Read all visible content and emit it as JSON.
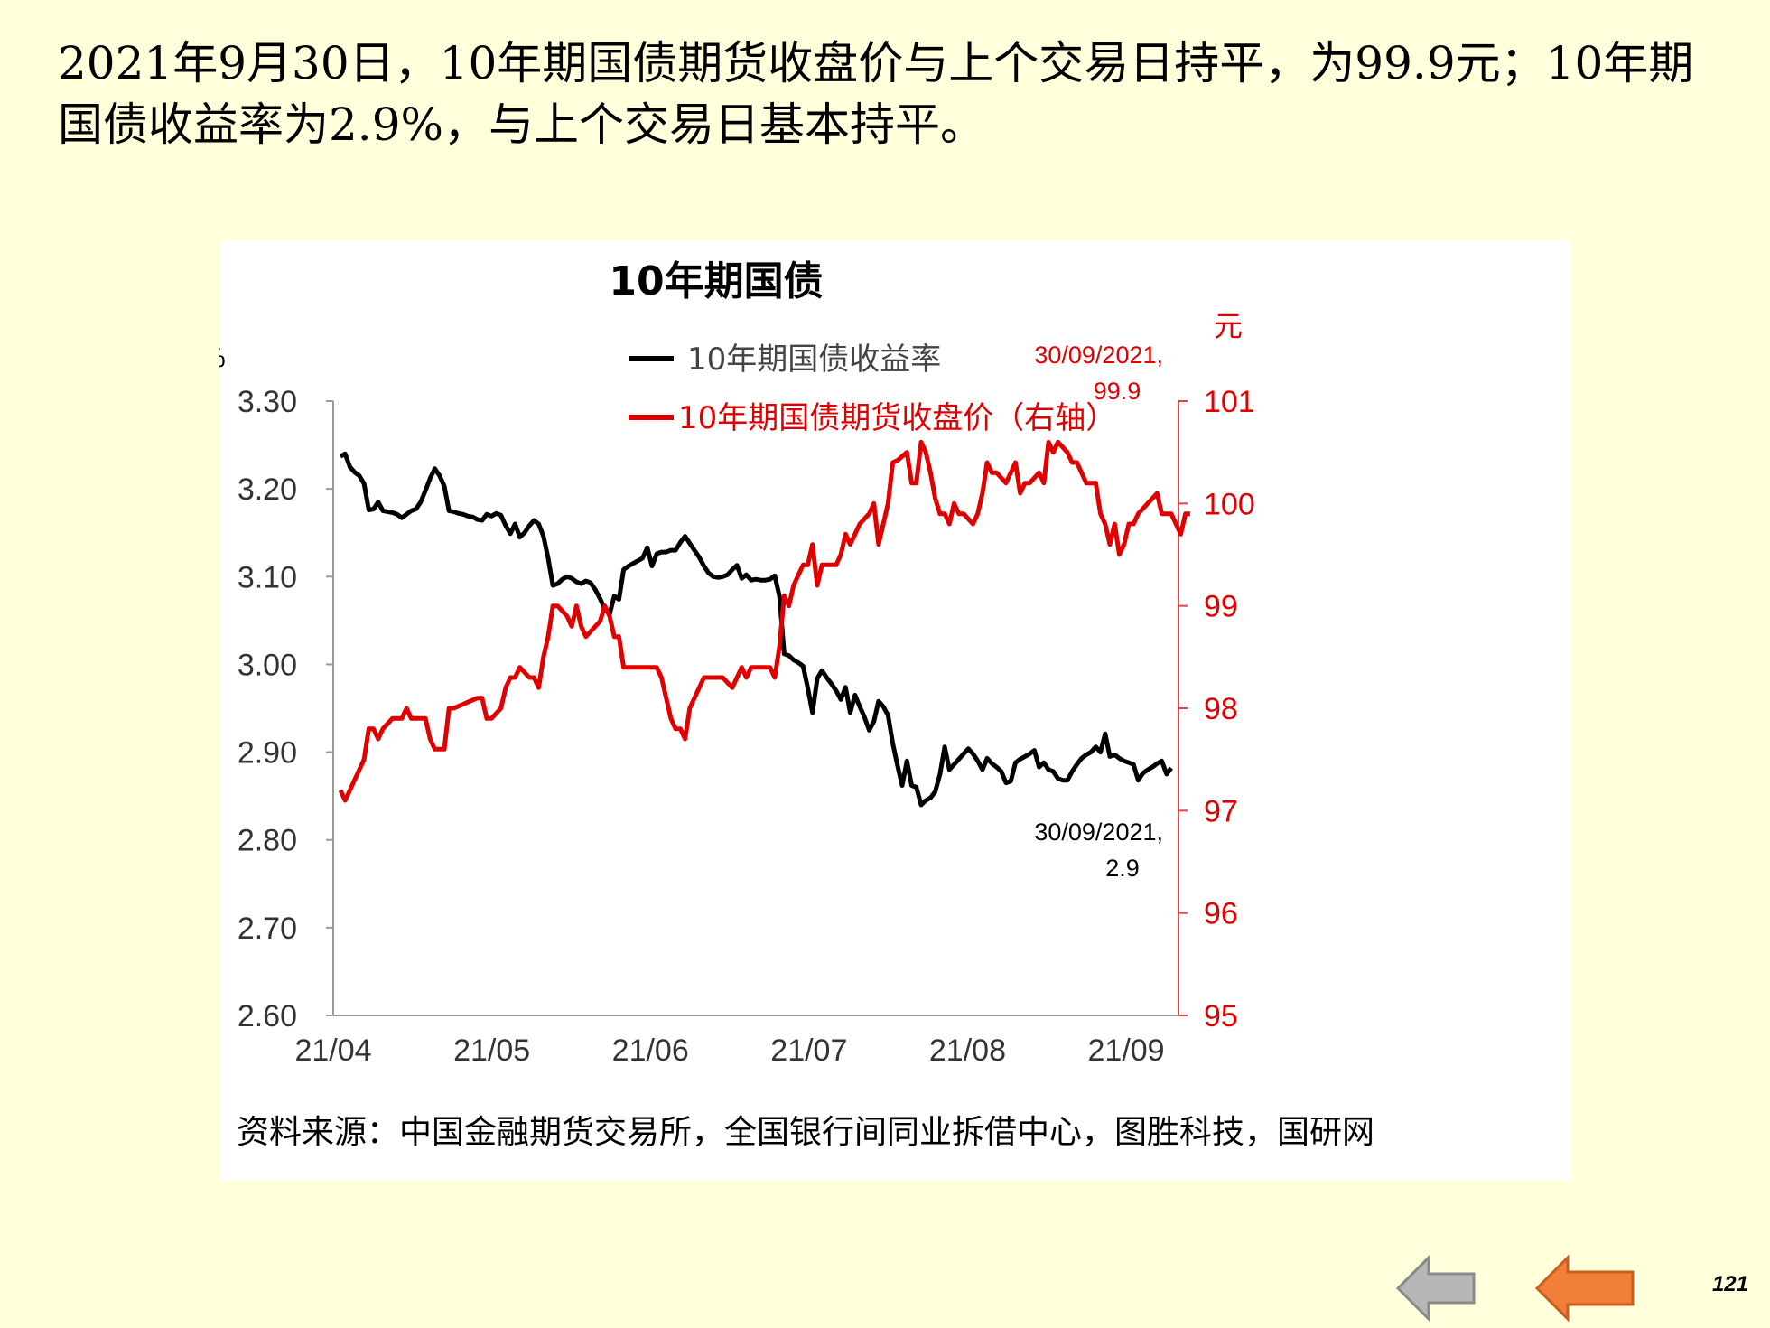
{
  "headline": "2021年9月30日，10年期国债期货收盘价与上个交易日持平，为99.9元；10年期国债收益率为2.9%，与上个交易日基本持平。",
  "source": "资料来源：中国金融期货交易所，全国银行间同业拆借中心，图胜科技，国研网",
  "page_number": "121",
  "nav": {
    "back_icon": "gray-left-arrow-icon",
    "prev_icon": "orange-left-arrow-icon"
  },
  "colors": {
    "background": "#ffffdc",
    "yield": "#000000",
    "futures": "#e00000",
    "prev_button": "#f07f3a",
    "back_button": "#b7b7b7"
  },
  "chart_data": {
    "type": "line",
    "title": "10年期国债",
    "xlabel": "",
    "y_left_unit": "%",
    "y_right_unit": "元",
    "x_ticks": [
      "21/04",
      "21/05",
      "21/06",
      "21/07",
      "21/08",
      "21/09"
    ],
    "ylim_left": [
      2.6,
      3.3
    ],
    "yticks_left": [
      "3.30",
      "3.20",
      "3.10",
      "3.00",
      "2.90",
      "2.80",
      "2.70",
      "2.60"
    ],
    "ylim_right": [
      95,
      101
    ],
    "yticks_right": [
      "101",
      "100",
      "99",
      "98",
      "97",
      "96",
      "95"
    ],
    "legend": [
      "10年期国债收益率",
      "10年期国债期货收盘价（右轴）"
    ],
    "annotations": [
      {
        "series": "futures",
        "line1": "30/09/2021,",
        "line2": "99.9"
      },
      {
        "series": "yield",
        "line1": "30/09/2021,",
        "line2": "2.9"
      }
    ],
    "series": [
      {
        "name": "10年期国债收益率",
        "axis": "left",
        "color": "#000000",
        "values": [
          3.237,
          3.24,
          3.225,
          3.219,
          3.215,
          3.206,
          3.176,
          3.177,
          3.185,
          3.175,
          3.174,
          3.173,
          3.171,
          3.167,
          3.171,
          3.175,
          3.177,
          3.185,
          3.198,
          3.212,
          3.223,
          3.215,
          3.203,
          3.175,
          3.174,
          3.172,
          3.171,
          3.169,
          3.168,
          3.165,
          3.164,
          3.171,
          3.169,
          3.172,
          3.17,
          3.158,
          3.149,
          3.16,
          3.145,
          3.15,
          3.158,
          3.164,
          3.16,
          3.146,
          3.121,
          3.09,
          3.092,
          3.097,
          3.1,
          3.098,
          3.094,
          3.092,
          3.095,
          3.093,
          3.085,
          3.075,
          3.063,
          3.057,
          3.078,
          3.074,
          3.108,
          3.112,
          3.115,
          3.118,
          3.121,
          3.133,
          3.112,
          3.126,
          3.128,
          3.128,
          3.13,
          3.13,
          3.139,
          3.146,
          3.138,
          3.13,
          3.122,
          3.112,
          3.104,
          3.1,
          3.099,
          3.1,
          3.102,
          3.108,
          3.113,
          3.098,
          3.102,
          3.096,
          3.097,
          3.096,
          3.096,
          3.097,
          3.101,
          3.078,
          3.012,
          3.01,
          3.005,
          3.002,
          2.998,
          2.973,
          2.945,
          2.984,
          2.993,
          2.985,
          2.978,
          2.97,
          2.96,
          2.974,
          2.945,
          2.965,
          2.952,
          2.94,
          2.925,
          2.935,
          2.958,
          2.952,
          2.942,
          2.91,
          2.885,
          2.862,
          2.89,
          2.862,
          2.86,
          2.84,
          2.845,
          2.848,
          2.855,
          2.875,
          2.906,
          2.88,
          2.886,
          2.892,
          2.898,
          2.904,
          2.898,
          2.89,
          2.88,
          2.893,
          2.887,
          2.883,
          2.878,
          2.865,
          2.867,
          2.888,
          2.892,
          2.895,
          2.898,
          2.902,
          2.883,
          2.888,
          2.88,
          2.878,
          2.87,
          2.868,
          2.868,
          2.878,
          2.886,
          2.893,
          2.897,
          2.9,
          2.906,
          2.9,
          2.921,
          2.895,
          2.897,
          2.893,
          2.89,
          2.888,
          2.886,
          2.868,
          2.876,
          2.88,
          2.883,
          2.887,
          2.89,
          2.875,
          2.882
        ]
      },
      {
        "name": "10年期国债期货收盘价（右轴）",
        "axis": "right",
        "color": "#e00000",
        "values": [
          97.2,
          97.1,
          97.2,
          97.3,
          97.4,
          97.5,
          97.8,
          97.8,
          97.7,
          97.8,
          97.85,
          97.9,
          97.9,
          97.9,
          98.0,
          97.9,
          97.9,
          97.9,
          97.9,
          97.7,
          97.6,
          97.6,
          97.6,
          98.0,
          98.0,
          98.02,
          98.04,
          98.06,
          98.08,
          98.1,
          98.1,
          97.9,
          97.9,
          97.95,
          98.0,
          98.2,
          98.3,
          98.3,
          98.4,
          98.35,
          98.3,
          98.3,
          98.2,
          98.5,
          98.7,
          99.0,
          99.0,
          98.95,
          98.9,
          98.8,
          99.0,
          98.8,
          98.7,
          98.75,
          98.8,
          98.85,
          99.0,
          98.9,
          98.7,
          98.7,
          98.4,
          98.4,
          98.4,
          98.4,
          98.4,
          98.4,
          98.4,
          98.4,
          98.3,
          98.1,
          97.9,
          97.8,
          97.8,
          97.7,
          98.0,
          98.1,
          98.2,
          98.3,
          98.3,
          98.3,
          98.3,
          98.3,
          98.25,
          98.2,
          98.3,
          98.4,
          98.3,
          98.4,
          98.4,
          98.4,
          98.4,
          98.4,
          98.3,
          98.6,
          99.1,
          99.0,
          99.2,
          99.3,
          99.4,
          99.4,
          99.6,
          99.2,
          99.4,
          99.4,
          99.4,
          99.4,
          99.5,
          99.7,
          99.6,
          99.7,
          99.8,
          99.85,
          99.9,
          100.0,
          99.6,
          99.8,
          100.0,
          100.4,
          100.42,
          100.46,
          100.5,
          100.2,
          100.2,
          100.6,
          100.5,
          100.3,
          100.05,
          99.9,
          99.9,
          99.8,
          100.0,
          99.9,
          99.9,
          99.85,
          99.8,
          99.9,
          100.1,
          100.4,
          100.3,
          100.3,
          100.25,
          100.2,
          100.3,
          100.4,
          100.1,
          100.2,
          100.2,
          100.25,
          100.3,
          100.2,
          100.6,
          100.5,
          100.6,
          100.55,
          100.5,
          100.4,
          100.4,
          100.3,
          100.2,
          100.2,
          100.2,
          99.9,
          99.8,
          99.6,
          99.8,
          99.5,
          99.6,
          99.8,
          99.8,
          99.9,
          99.95,
          100.0,
          100.05,
          100.1,
          99.9,
          99.9,
          99.9,
          99.8,
          99.7,
          99.9,
          99.9
        ]
      }
    ]
  }
}
